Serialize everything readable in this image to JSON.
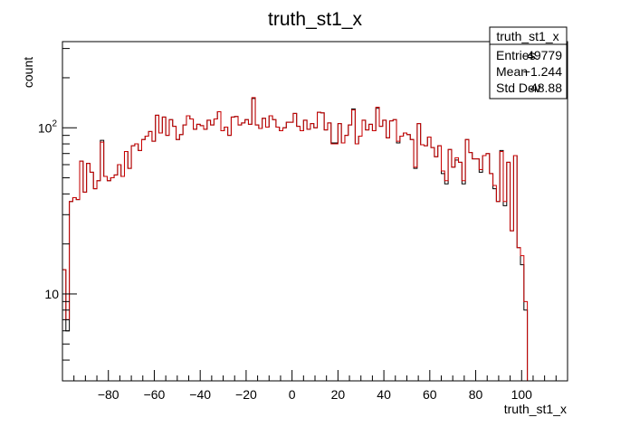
{
  "chart_data": {
    "type": "histogram",
    "title": "truth_st1_x",
    "xlabel": "truth_st1_x",
    "ylabel": "count",
    "xlim": [
      -100,
      120
    ],
    "ylim": [
      3.0,
      330
    ],
    "yscale": "log",
    "grid": false,
    "xticks": [
      -80,
      -60,
      -40,
      -20,
      0,
      20,
      40,
      60,
      80,
      100
    ],
    "ytick_labels": [
      "10",
      "10^2"
    ],
    "stats": {
      "name": "truth_st1_x",
      "rows": [
        {
          "label": "Entries",
          "value": "49779"
        },
        {
          "label": "Mean",
          "value": "−1.244"
        },
        {
          "label": "Std Dev",
          "value": "48.88"
        }
      ]
    },
    "bin_width": 1.5,
    "x_start": -100,
    "series": [
      {
        "color": "#000000",
        "values": [
          14,
          6,
          36,
          38,
          37,
          63,
          41,
          61,
          54,
          43,
          48,
          84,
          51,
          48,
          50,
          52,
          60,
          51,
          72,
          57,
          78,
          80,
          73,
          85,
          89,
          95,
          83,
          119,
          93,
          116,
          90,
          112,
          102,
          85,
          91,
          104,
          118,
          113,
          98,
          105,
          103,
          98,
          111,
          104,
          113,
          125,
          96,
          101,
          90,
          116,
          117,
          104,
          107,
          112,
          105,
          150,
          104,
          99,
          114,
          101,
          118,
          112,
          101,
          96,
          100,
          108,
          108,
          122,
          102,
          96,
          111,
          98,
          106,
          100,
          124,
          123,
          97,
          107,
          81,
          81,
          106,
          81,
          90,
          104,
          130,
          80,
          89,
          111,
          97,
          105,
          96,
          131,
          102,
          111,
          87,
          110,
          112,
          81,
          89,
          93,
          91,
          85,
          57,
          106,
          79,
          78,
          88,
          76,
          67,
          78,
          53,
          46,
          74,
          58,
          64,
          62,
          46,
          85,
          71,
          65,
          65,
          54,
          68,
          70,
          53,
          43,
          36,
          73,
          34,
          62,
          24,
          68,
          19,
          15,
          8,
          3,
          0,
          0,
          0,
          0,
          0,
          0,
          0,
          0,
          0,
          0
        ]
      },
      {
        "color": "#cc0000",
        "values": [
          14,
          7,
          36,
          38,
          37,
          63,
          41,
          61,
          54,
          43,
          48,
          82,
          51,
          48,
          50,
          52,
          60,
          51,
          72,
          57,
          78,
          80,
          73,
          85,
          89,
          95,
          83,
          119,
          93,
          116,
          90,
          112,
          102,
          85,
          91,
          104,
          118,
          113,
          98,
          105,
          103,
          98,
          111,
          104,
          113,
          125,
          96,
          101,
          90,
          116,
          117,
          104,
          107,
          112,
          105,
          152,
          104,
          99,
          114,
          101,
          118,
          112,
          101,
          96,
          100,
          108,
          108,
          122,
          102,
          96,
          111,
          98,
          106,
          100,
          124,
          123,
          97,
          107,
          80,
          80,
          106,
          81,
          90,
          104,
          128,
          80,
          89,
          111,
          97,
          105,
          96,
          133,
          102,
          111,
          87,
          110,
          112,
          83,
          89,
          93,
          91,
          85,
          58,
          106,
          79,
          78,
          88,
          76,
          67,
          78,
          55,
          48,
          74,
          58,
          66,
          62,
          48,
          85,
          71,
          65,
          65,
          56,
          68,
          70,
          53,
          45,
          36,
          72,
          36,
          62,
          24,
          68,
          19,
          17,
          9,
          3,
          0,
          0,
          0,
          0,
          0,
          0,
          0,
          0,
          0,
          0
        ]
      }
    ]
  }
}
